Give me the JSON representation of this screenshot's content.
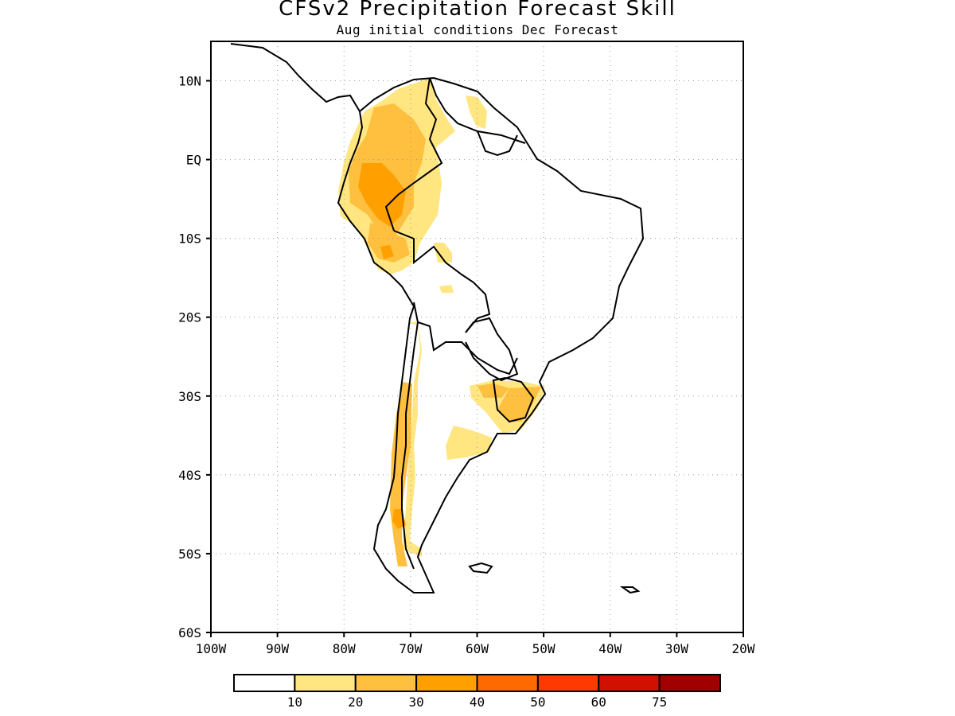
{
  "title": "CFSv2 Precipitation Forecast Skill",
  "subtitle": "Aug initial conditions  Dec Forecast",
  "map": {
    "lon_range": [
      -100,
      -20
    ],
    "lat_range": [
      -60,
      15
    ],
    "lat_labels": [
      "10N",
      "EQ",
      "10S",
      "20S",
      "30S",
      "40S",
      "50S",
      "60S"
    ],
    "lat_values": [
      10,
      0,
      -10,
      -20,
      -30,
      -40,
      -50,
      -60
    ],
    "lon_labels": [
      "100W",
      "90W",
      "80W",
      "70W",
      "60W",
      "50W",
      "40W",
      "30W",
      "20W"
    ],
    "lon_values": [
      -100,
      -90,
      -80,
      -70,
      -60,
      -50,
      -40,
      -30,
      -20
    ],
    "grid": "dotted"
  },
  "colorbar": {
    "labels": [
      "10",
      "20",
      "30",
      "40",
      "50",
      "60",
      "75"
    ],
    "colors": [
      "#ffffff",
      "#ffe680",
      "#ffc040",
      "#ffa000",
      "#ff6a00",
      "#ff3a00",
      "#d01000",
      "#a00000"
    ]
  }
}
